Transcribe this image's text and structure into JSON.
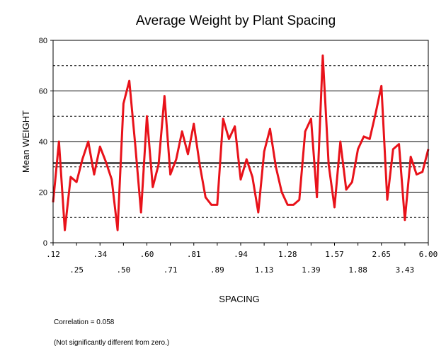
{
  "chart_data": {
    "type": "line",
    "title": "Average Weight by Plant Spacing",
    "xlabel": "SPACING",
    "ylabel": "Mean WEIGHT",
    "ylim": [
      0,
      80
    ],
    "yticks": [
      0,
      20,
      40,
      60,
      80
    ],
    "grid": {
      "horizontal_dashed": [
        10,
        30,
        50,
        70
      ],
      "solid_at_ticks": [
        20,
        40,
        60
      ]
    },
    "mean_line": 31.5,
    "x_tick_labels": [
      ".12",
      ".25",
      ".34",
      ".50",
      ".60",
      ".71",
      ".81",
      ".89",
      ".94",
      "1.13",
      "1.28",
      "1.39",
      "1.57",
      "1.88",
      "2.65",
      "3.43",
      "6.00"
    ],
    "series": [
      {
        "color": "#e8121a",
        "values": [
          16,
          40,
          5,
          26,
          24,
          33,
          40,
          27,
          38,
          32,
          25,
          5,
          55,
          64,
          39,
          12,
          50,
          22,
          31,
          58,
          27,
          33,
          44,
          35,
          47,
          31,
          18,
          15,
          15,
          49,
          41,
          46,
          25,
          33,
          26,
          12,
          36,
          45,
          30,
          20,
          15,
          15,
          17,
          44,
          49,
          18,
          74,
          31,
          14,
          40,
          21,
          24,
          37,
          42,
          41,
          51,
          62,
          17,
          37,
          39,
          9,
          34,
          27,
          28,
          37
        ]
      }
    ]
  },
  "footnote": {
    "correlation": "Correlation = 0.058",
    "significance": "(Not significantly different from zero.)"
  }
}
